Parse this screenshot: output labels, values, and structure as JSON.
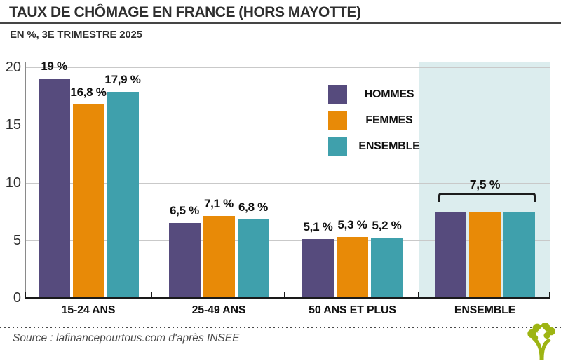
{
  "header": {
    "title": "TAUX DE CHÔMAGE EN FRANCE (HORS MAYOTTE)",
    "subtitle": "EN %, 3E TRIMESTRE 2025"
  },
  "colors": {
    "hommes": "#564B7D",
    "femmes": "#E88A07",
    "ensemble": "#3FA0AC",
    "highlight_band": "#DCEDEE",
    "grid_line": "#C9C9C9",
    "axis": "#1A1A1A",
    "logo_green": "#9DB413"
  },
  "chart_data": {
    "type": "bar",
    "title": "TAUX DE CHÔMAGE EN FRANCE (HORS MAYOTTE)",
    "subtitle": "EN %, 3E TRIMESTRE 2025",
    "unit": "%",
    "categories": [
      "15-24 ANS",
      "25-49 ANS",
      "50 ANS ET PLUS",
      "ENSEMBLE"
    ],
    "series": [
      {
        "name": "HOMMES",
        "color": "#564B7D",
        "values": [
          19,
          6.5,
          5.1,
          7.5
        ]
      },
      {
        "name": "FEMMES",
        "color": "#E88A07",
        "values": [
          16.8,
          7.1,
          5.3,
          7.5
        ]
      },
      {
        "name": "ENSEMBLE",
        "color": "#3FA0AC",
        "values": [
          17.9,
          6.8,
          5.2,
          7.5
        ]
      }
    ],
    "value_labels": [
      [
        "19 %",
        "16,8 %",
        "17,9 %"
      ],
      [
        "6,5 %",
        "7,1 %",
        "6,8 %"
      ],
      [
        "5,1 %",
        "5,3 %",
        "5,2 %"
      ],
      null
    ],
    "ensemble_bracket_label": "7,5 %",
    "ylim": [
      0,
      20
    ],
    "yticks": [
      0,
      5,
      10,
      15,
      20
    ],
    "grid": true,
    "legend_position": "upper-center-right",
    "highlight_category": "ENSEMBLE"
  },
  "footer": {
    "source": "Source : lafinancepourtous.com d'après INSEE"
  }
}
